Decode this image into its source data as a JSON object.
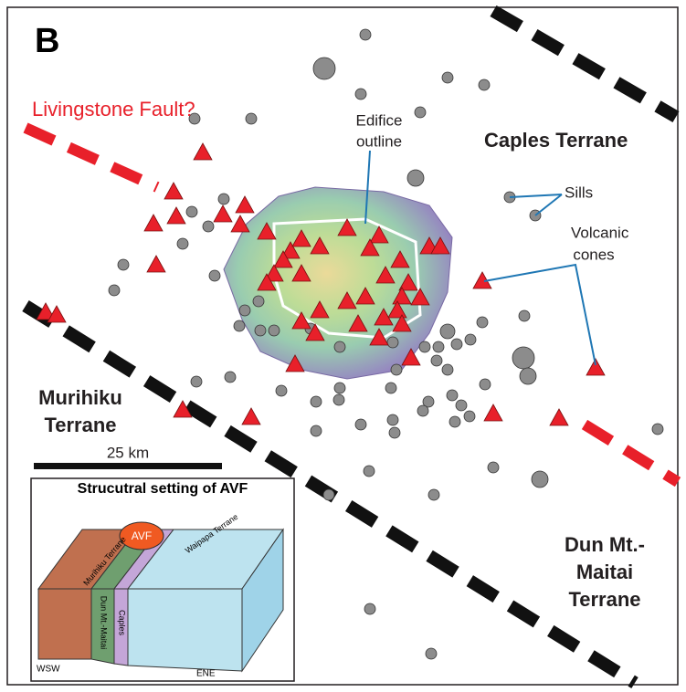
{
  "panel_label": "B",
  "fault_label": "Livingstone Fault?",
  "edifice_label": [
    "Edifice",
    "outline"
  ],
  "terranes": {
    "caples": [
      "Caples Terrane"
    ],
    "murihiku": [
      "Murihiku",
      "Terrane"
    ],
    "dun_mt": [
      "Dun Mt.-",
      "Maitai",
      "Terrane"
    ]
  },
  "sills_label": "Sills",
  "cones_label": [
    "Volcanic",
    "cones"
  ],
  "scale_bar": "25 km",
  "inset": {
    "title": "Strucutral setting of AVF",
    "labels": {
      "murihiku": "Murihiku Terrane",
      "avf": "AVF",
      "waipapa": "Waipapa Terrane",
      "dun_mt": "Dun Mt.-Maitai",
      "caples": "Caples",
      "wsw": "WSW",
      "ene": "ENE"
    }
  }
}
